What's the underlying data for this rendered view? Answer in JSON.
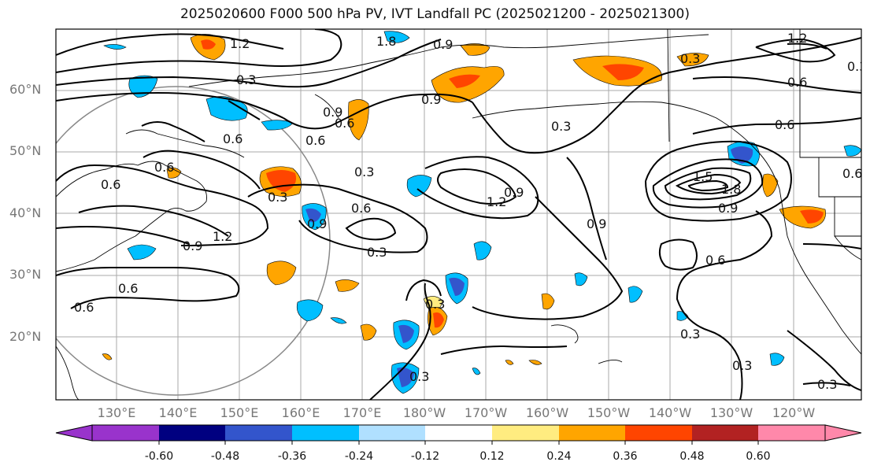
{
  "title": "2025020600 F000 500 hPa PV, IVT Landfall PC (2025021200 - 2025021300)",
  "axes": {
    "lat_labels": [
      "60°N",
      "50°N",
      "40°N",
      "30°N",
      "20°N"
    ],
    "lon_labels": [
      "130°E",
      "140°E",
      "150°E",
      "160°E",
      "170°E",
      "180°W",
      "170°W",
      "160°W",
      "150°W",
      "140°W",
      "130°W",
      "120°W"
    ]
  },
  "contour_labels": [
    "1.2",
    "1.8",
    "0.9",
    "0.3",
    "0.6",
    "0.9",
    "0.6",
    "0.6",
    "0.3",
    "0.6",
    "0.6",
    "0.3",
    "0.6",
    "1.2",
    "0.9",
    "0.3",
    "0.6",
    "0.9",
    "1.2",
    "0.9",
    "0.3",
    "0.3",
    "0.3",
    "0.3",
    "0.6",
    "1.5",
    "1.8",
    "0.9",
    "0.6",
    "0.9",
    "0.6",
    "0.3",
    "0.3",
    "0.3",
    "1.2",
    "0.3",
    "0.6",
    "0.6",
    "0.9"
  ],
  "colorbar": {
    "tick_labels": [
      "-0.60",
      "-0.48",
      "-0.36",
      "-0.24",
      "-0.12",
      "0.12",
      "0.24",
      "0.36",
      "0.48",
      "0.60"
    ],
    "colors": [
      "#9933cc",
      "#000080",
      "#3355cc",
      "#00bfff",
      "#b0e0ff",
      "#ffffff",
      "#ffec80",
      "#ffa500",
      "#ff4500",
      "#b22222",
      "#ff88aa"
    ]
  },
  "shading_colors": {
    "strong_negative": "#3355cc",
    "negative": "#00bfff",
    "weak_negative": "#b0e0ff",
    "weak_positive": "#ffec80",
    "positive": "#ffa500",
    "strong_positive": "#ff4500"
  }
}
